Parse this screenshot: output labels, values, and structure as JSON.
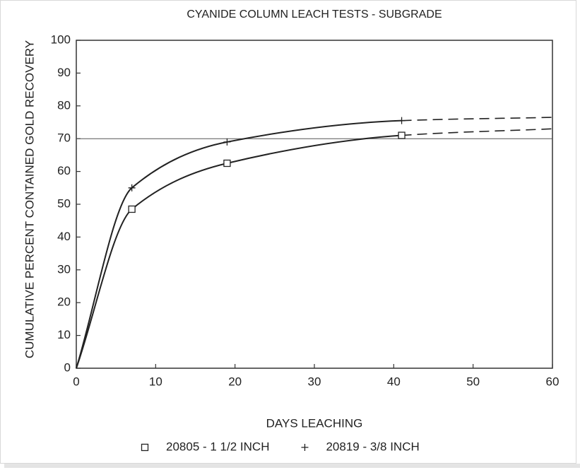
{
  "chart_data": {
    "type": "line",
    "title": "CYANIDE COLUMN LEACH TESTS - SUBGRADE",
    "xlabel": "DAYS LEACHING",
    "ylabel": "CUMULATIVE PERCENT CONTAINED GOLD RECOVERY",
    "xlim": [
      0,
      60
    ],
    "ylim": [
      0,
      100
    ],
    "xticks": [
      0,
      10,
      20,
      30,
      40,
      50,
      60
    ],
    "yticks": [
      0,
      10,
      20,
      30,
      40,
      50,
      60,
      70,
      80,
      90,
      100
    ],
    "reference_line": 70,
    "grid": false,
    "legend": "bottom",
    "series": [
      {
        "name": "20805 - 1 1/2 INCH",
        "marker": "square",
        "color": "#222222",
        "x": [
          0,
          7,
          19,
          41,
          60
        ],
        "values": [
          0,
          48.5,
          62.5,
          71,
          73
        ]
      },
      {
        "name": "20819 - 3/8 INCH",
        "marker": "plus",
        "color": "#222222",
        "x": [
          0,
          7,
          19,
          41,
          60
        ],
        "values": [
          0,
          55,
          69,
          75.5,
          76.5
        ]
      }
    ]
  }
}
